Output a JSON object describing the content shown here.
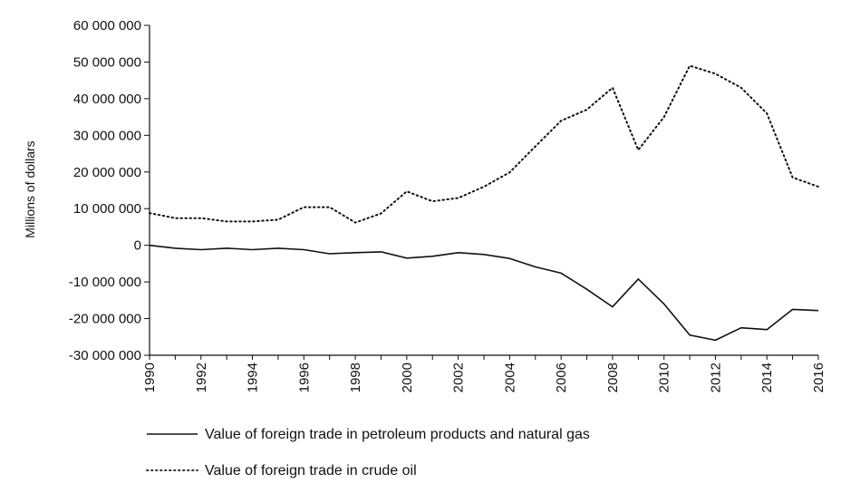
{
  "chart_data": {
    "type": "line",
    "title": "",
    "xlabel": "",
    "ylabel": "Millions of dollars",
    "ylim": [
      -30000000,
      60000000
    ],
    "yticks": [
      60000000,
      50000000,
      40000000,
      30000000,
      20000000,
      10000000,
      0,
      -10000000,
      -20000000,
      -30000000
    ],
    "ytick_labels": [
      "60 000 000",
      "50 000 000",
      "40 000 000",
      "30 000 000",
      "20 000 000",
      "10 000 000",
      "0",
      "-10 000 000",
      "-20 000 000",
      "-30 000 000"
    ],
    "xlim": [
      1990,
      2016
    ],
    "xtick_labels": [
      "1990",
      "1992",
      "1994",
      "1996",
      "1998",
      "2000",
      "2002",
      "2004",
      "2006",
      "2008",
      "2010",
      "2012",
      "2014",
      "2016"
    ],
    "x": [
      1990,
      1991,
      1992,
      1993,
      1994,
      1995,
      1996,
      1997,
      1998,
      1999,
      2000,
      2001,
      2002,
      2003,
      2004,
      2005,
      2006,
      2007,
      2008,
      2009,
      2010,
      2011,
      2012,
      2013,
      2014,
      2015,
      2016
    ],
    "series": [
      {
        "name": "Value of foreign trade in petroleum products and natural gas",
        "style": "solid",
        "values": [
          0,
          -800000,
          -1200000,
          -800000,
          -1200000,
          -800000,
          -1200000,
          -2300000,
          -2000000,
          -1800000,
          -3500000,
          -3000000,
          -2000000,
          -2500000,
          -3600000,
          -5900000,
          -7600000,
          -12000000,
          -16800000,
          -9200000,
          -16000000,
          -24500000,
          -25900000,
          -22500000,
          -23000000,
          -17500000,
          -17800000
        ]
      },
      {
        "name": "Value of foreign trade in crude oil",
        "style": "dotted",
        "values": [
          8800000,
          7400000,
          7400000,
          6500000,
          6500000,
          7000000,
          10400000,
          10400000,
          6200000,
          8700000,
          14700000,
          12000000,
          12900000,
          16000000,
          19900000,
          27000000,
          34000000,
          37000000,
          43000000,
          26000000,
          35000000,
          49000000,
          46800000,
          43000000,
          36000000,
          18500000,
          16000000
        ]
      }
    ],
    "legend": "bottom-left"
  }
}
